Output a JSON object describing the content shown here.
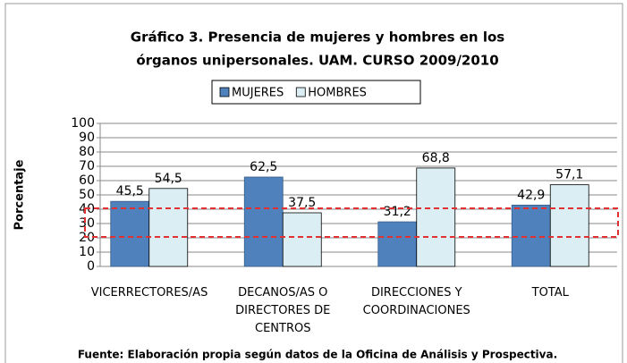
{
  "chart_data": {
    "type": "bar",
    "title": "Gráfico 3. Presencia de mujeres y hombres en los órganos unipersonales. UAM. CURSO 2009/2010",
    "y_label": "Porcentaje",
    "source": "Fuente: Elaboración propia según datos de la Oficina de Análisis y Prospectiva.",
    "categories": [
      "VICERRECTORES/AS",
      "DECANOS/AS O DIRECTORES DE CENTROS",
      "DIRECCIONES Y COORDINACIONES",
      "TOTAL"
    ],
    "series": [
      {
        "name": "MUJERES",
        "color": "#4f81bd",
        "values": [
          45.5,
          62.5,
          31.2,
          42.9
        ],
        "value_labels": [
          "45,5",
          "62,5",
          "31,2",
          "42,9"
        ]
      },
      {
        "name": "HOMBRES",
        "color": "#dbeef4",
        "values": [
          54.5,
          37.5,
          68.8,
          57.1
        ],
        "value_labels": [
          "54,5",
          "37,5",
          "68,8",
          "57,1"
        ]
      }
    ],
    "ylim": [
      0,
      100
    ],
    "yticks": [
      0,
      10,
      20,
      30,
      40,
      50,
      60,
      70,
      80,
      90,
      100
    ],
    "grid": true,
    "legend": "top"
  }
}
